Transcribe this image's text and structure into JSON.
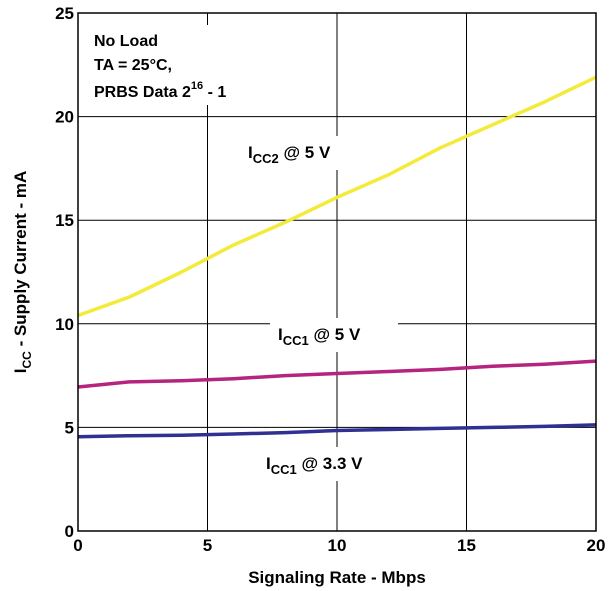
{
  "chart_data": {
    "type": "line",
    "xlabel": "Signaling Rate - Mbps",
    "ylabel": {
      "main": "I",
      "sub": "CC",
      "rest": " - Supply Current - mA"
    },
    "xlim": [
      0,
      20
    ],
    "ylim": [
      0,
      25
    ],
    "xticks": [
      0,
      5,
      10,
      15,
      20
    ],
    "yticks": [
      0,
      5,
      10,
      15,
      20,
      25
    ],
    "grid": true,
    "annotation": {
      "line1": "No Load",
      "line2": "TA = 25°C,",
      "line3_main": "PRBS Data 2",
      "line3_sup": "16",
      "line3_end": " - 1"
    },
    "series": [
      {
        "label_main": "I",
        "label_sub": "CC2",
        "label_rest": " @ 5 V",
        "color": "#f4ea3a",
        "x": [
          0,
          2,
          4,
          6,
          8,
          10,
          12,
          14,
          16,
          18,
          20
        ],
        "y": [
          10.4,
          11.3,
          12.5,
          13.8,
          14.9,
          16.1,
          17.2,
          18.5,
          19.6,
          20.7,
          21.9
        ]
      },
      {
        "label_main": "I",
        "label_sub": "CC1",
        "label_rest": " @ 5 V",
        "color": "#b5247f",
        "x": [
          0,
          2,
          4,
          6,
          8,
          10,
          12,
          14,
          16,
          18,
          20
        ],
        "y": [
          6.95,
          7.2,
          7.25,
          7.35,
          7.5,
          7.6,
          7.7,
          7.8,
          7.95,
          8.05,
          8.2
        ]
      },
      {
        "label_main": "I",
        "label_sub": "CC1",
        "label_rest": " @ 3.3 V",
        "color": "#2e3192",
        "x": [
          0,
          2,
          4,
          6,
          8,
          10,
          12,
          14,
          16,
          18,
          20
        ],
        "y": [
          4.55,
          4.6,
          4.62,
          4.68,
          4.75,
          4.85,
          4.9,
          4.95,
          5.0,
          5.05,
          5.12
        ]
      }
    ]
  }
}
